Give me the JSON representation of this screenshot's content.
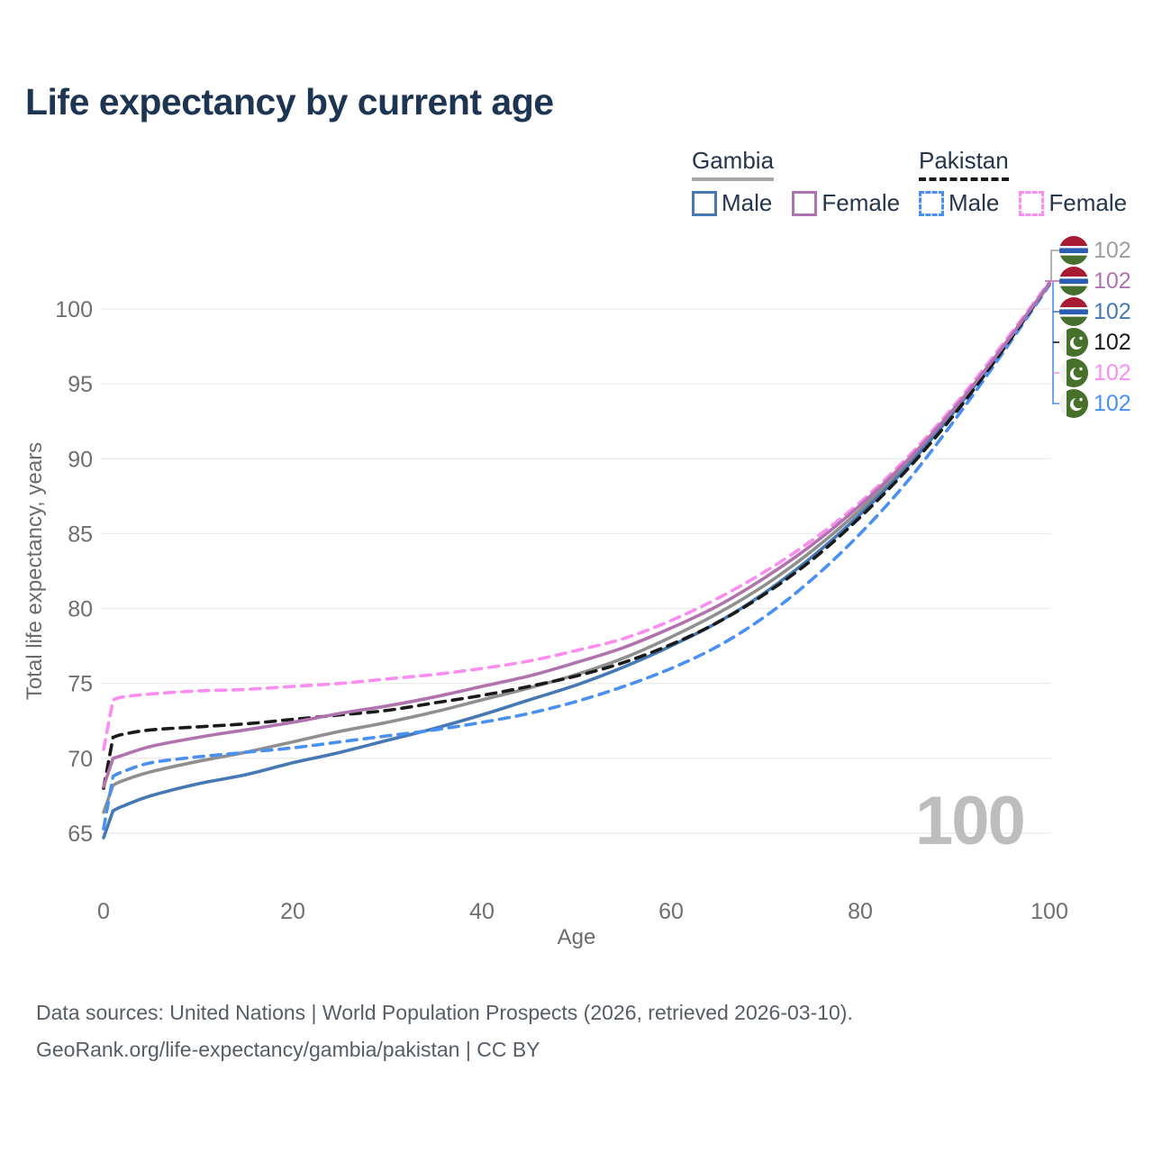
{
  "title": "Life expectancy by current age",
  "watermark": "100",
  "legend": {
    "gambia": {
      "title": "Gambia",
      "male": "Male",
      "female": "Female"
    },
    "pakistan": {
      "title": "Pakistan",
      "male": "Male",
      "female": "Female"
    }
  },
  "colors": {
    "gambia_total": "#9e9e9e",
    "gambia_male": "#4678b4",
    "gambia_female": "#b173ae",
    "pakistan_total": "#1a1a1a",
    "pakistan_male": "#4a90f2",
    "pakistan_female": "#fb8cf0",
    "grid": "#ececec",
    "title_text": "#1d3553",
    "watermark_text": "#bdbdbd"
  },
  "right_labels": [
    {
      "country": "gambia",
      "series": "Gambia Both sexes",
      "value": "102",
      "color": "#9e9e9e"
    },
    {
      "country": "gambia",
      "series": "Gambia Female",
      "value": "102",
      "color": "#b173ae"
    },
    {
      "country": "gambia",
      "series": "Gambia Male",
      "value": "102",
      "color": "#4678b4"
    },
    {
      "country": "pakistan",
      "series": "Pakistan Both sexes",
      "value": "102",
      "color": "#1a1a1a"
    },
    {
      "country": "pakistan",
      "series": "Pakistan Female",
      "value": "102",
      "color": "#fb8cf0"
    },
    {
      "country": "pakistan",
      "series": "Pakistan Male",
      "value": "102",
      "color": "#4a90f2"
    }
  ],
  "footer": {
    "line1": "Data sources: United Nations | World Population Prospects (2026, retrieved 2026-03-10).",
    "line2": "GeoRank.org/life-expectancy/gambia/pakistan | CC BY"
  },
  "chart_data": {
    "type": "line",
    "title": "Life expectancy by current age",
    "xlabel": "Age",
    "ylabel": "Total life expectancy, years",
    "xlim": [
      0,
      100
    ],
    "ylim": [
      65,
      100
    ],
    "xticks": [
      0,
      20,
      40,
      60,
      80,
      100
    ],
    "yticks": [
      65,
      70,
      75,
      80,
      85,
      90,
      95,
      100
    ],
    "grid": "horizontal",
    "legend_position": "top-right",
    "x": [
      0,
      1,
      2,
      5,
      10,
      15,
      20,
      25,
      30,
      35,
      40,
      45,
      50,
      55,
      60,
      65,
      70,
      75,
      80,
      85,
      90,
      95,
      100
    ],
    "series": [
      {
        "name": "Gambia Both sexes",
        "color": "#8f8f8f",
        "dash": false,
        "values": [
          66.4,
          68.2,
          68.5,
          69.1,
          69.8,
          70.4,
          71.1,
          71.8,
          72.4,
          73.1,
          73.9,
          74.7,
          75.6,
          76.7,
          78.1,
          79.7,
          81.6,
          83.9,
          86.6,
          89.7,
          93.3,
          97.4,
          101.7
        ]
      },
      {
        "name": "Gambia Male",
        "color": "#4678b4",
        "dash": false,
        "values": [
          64.7,
          66.5,
          66.8,
          67.5,
          68.3,
          68.9,
          69.7,
          70.4,
          71.2,
          72.0,
          72.9,
          73.9,
          74.9,
          76.1,
          77.5,
          79.1,
          81.1,
          83.5,
          86.3,
          89.5,
          93.2,
          97.3,
          101.7
        ]
      },
      {
        "name": "Pakistan Male",
        "color": "#4a90f2",
        "dash": true,
        "values": [
          65.3,
          68.8,
          69.1,
          69.7,
          70.1,
          70.4,
          70.7,
          71.1,
          71.5,
          71.9,
          72.4,
          73.0,
          73.8,
          74.8,
          76.0,
          77.5,
          79.5,
          82.0,
          85.0,
          88.5,
          92.6,
          97.0,
          101.6
        ]
      },
      {
        "name": "Pakistan Both sexes",
        "color": "#1a1a1a",
        "dash": true,
        "values": [
          68.0,
          71.4,
          71.6,
          71.9,
          72.1,
          72.3,
          72.6,
          72.9,
          73.2,
          73.7,
          74.2,
          74.8,
          75.5,
          76.4,
          77.6,
          79.1,
          81.0,
          83.3,
          86.1,
          89.3,
          93.0,
          97.2,
          101.7
        ]
      },
      {
        "name": "Pakistan Female",
        "color": "#fb8cf0",
        "dash": true,
        "values": [
          70.6,
          73.9,
          74.1,
          74.3,
          74.5,
          74.6,
          74.8,
          75.0,
          75.3,
          75.6,
          76.0,
          76.5,
          77.2,
          78.0,
          79.2,
          80.7,
          82.5,
          84.6,
          87.1,
          90.1,
          93.6,
          97.6,
          101.8
        ]
      },
      {
        "name": "Gambia Female",
        "color": "#b173ae",
        "dash": false,
        "values": [
          68.1,
          70.0,
          70.2,
          70.8,
          71.4,
          71.9,
          72.4,
          73.0,
          73.5,
          74.1,
          74.8,
          75.5,
          76.4,
          77.4,
          78.7,
          80.2,
          82.1,
          84.3,
          86.9,
          89.9,
          93.4,
          97.4,
          101.7
        ]
      }
    ]
  }
}
